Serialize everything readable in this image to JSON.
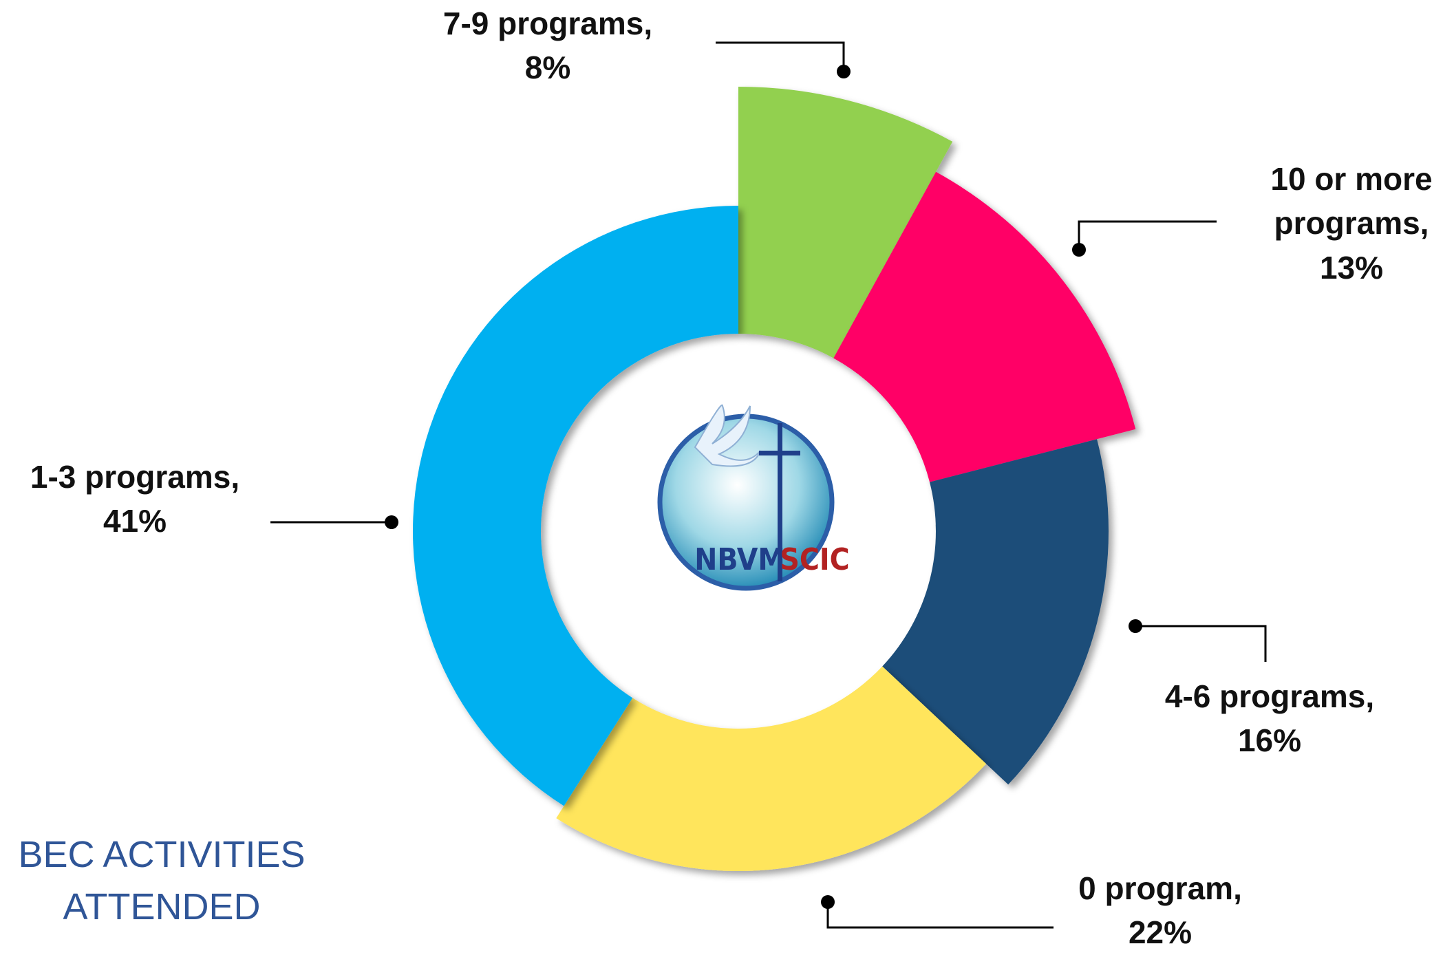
{
  "chart_data": {
    "type": "pie",
    "title": "BEC ACTIVITIES ATTENDED",
    "categories": [
      "7-9 programs,",
      "10 or more programs,",
      "4-6 programs,",
      "0 program,",
      "1-3 programs,"
    ],
    "values": [
      8,
      13,
      16,
      22,
      41
    ],
    "value_labels": [
      "8%",
      "13%",
      "16%",
      "22%",
      "41%"
    ],
    "colors": [
      "#92d050",
      "#ff0066",
      "#1f4e79",
      "#ffe55c",
      "#00b0f0"
    ]
  },
  "logo": {
    "left": "NBVM",
    "right": "SCIC"
  }
}
